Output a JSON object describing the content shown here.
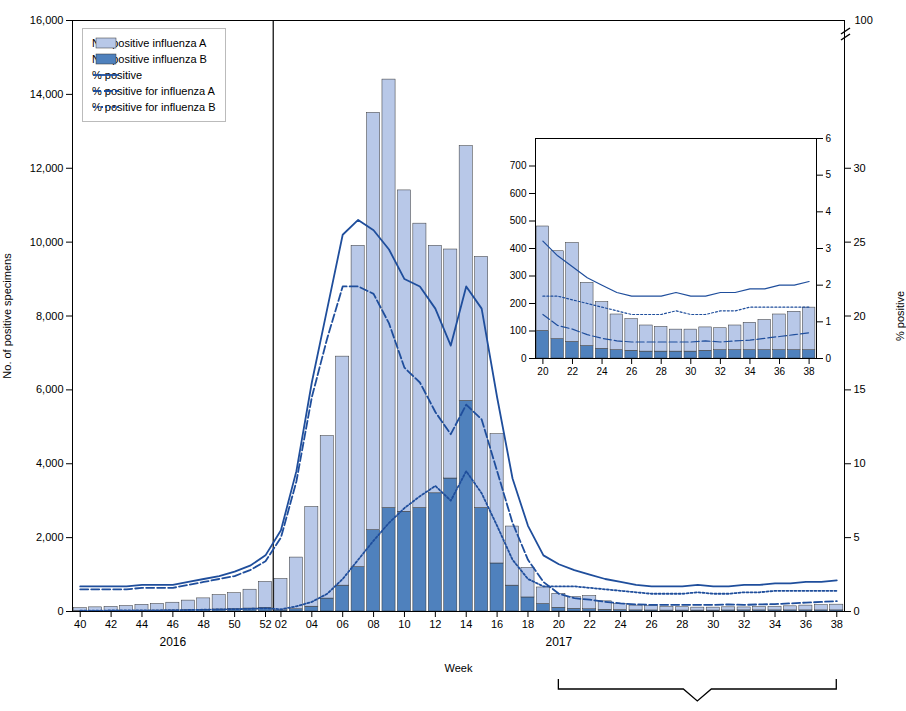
{
  "chart_data": [
    {
      "type": "bar",
      "xlabel": "Week",
      "ylabel": "No. of positive specimens",
      "y2label": "% positive",
      "categories": [
        "40",
        null,
        "42",
        null,
        "44",
        null,
        "46",
        null,
        "48",
        null,
        "50",
        null,
        "52",
        "02",
        null,
        "04",
        null,
        "06",
        null,
        "08",
        null,
        "10",
        null,
        "12",
        null,
        "14",
        null,
        "16",
        null,
        "18",
        null,
        "20",
        null,
        "22",
        null,
        "24",
        null,
        "26",
        null,
        "28",
        null,
        "30",
        null,
        "32",
        null,
        "34",
        null,
        "36",
        null,
        "38"
      ],
      "series": [
        {
          "name": "No. positive influenza A",
          "type": "bar",
          "color": "#b8c8e8",
          "values": [
            80,
            100,
            110,
            130,
            160,
            180,
            210,
            260,
            310,
            390,
            430,
            510,
            700,
            850,
            1400,
            2700,
            4400,
            6200,
            8700,
            11300,
            11600,
            8700,
            7700,
            6700,
            6200,
            6900,
            6800,
            3500,
            1600,
            800,
            450,
            380,
            320,
            360,
            230,
            170,
            130,
            115,
            95,
            90,
            80,
            80,
            85,
            80,
            90,
            100,
            110,
            130,
            140,
            155
          ]
        },
        {
          "name": "No. positive influenza B",
          "type": "bar",
          "color": "#4f81bd",
          "values": [
            10,
            12,
            15,
            18,
            22,
            25,
            28,
            35,
            45,
            55,
            65,
            80,
            100,
            30,
            60,
            130,
            350,
            700,
            1200,
            2200,
            2800,
            2700,
            2800,
            3200,
            3600,
            5700,
            2800,
            1300,
            700,
            380,
            200,
            100,
            70,
            60,
            45,
            35,
            30,
            28,
            25,
            25,
            25,
            25,
            28,
            30,
            30,
            30,
            30,
            30,
            30,
            30
          ]
        },
        {
          "name": "% positive",
          "type": "line",
          "axis": "y2",
          "color": "#1f4e9c",
          "line_style": "solid",
          "values": [
            1.7,
            1.7,
            1.7,
            1.7,
            1.8,
            1.8,
            1.8,
            2.0,
            2.2,
            2.4,
            2.7,
            3.1,
            3.8,
            5.5,
            9.5,
            15.5,
            20.5,
            25.5,
            26.5,
            25.8,
            24.5,
            22.5,
            22.0,
            20.5,
            18.0,
            22.0,
            20.5,
            14.5,
            9.0,
            5.8,
            3.8,
            3.2,
            2.8,
            2.5,
            2.2,
            2.0,
            1.8,
            1.7,
            1.7,
            1.7,
            1.8,
            1.7,
            1.7,
            1.8,
            1.8,
            1.9,
            1.9,
            2.0,
            2.0,
            2.1
          ]
        },
        {
          "name": "% positive for influenza A",
          "type": "line",
          "axis": "y2",
          "color": "#1f4e9c",
          "line_style": "dashed",
          "values": [
            1.5,
            1.5,
            1.5,
            1.5,
            1.6,
            1.6,
            1.6,
            1.8,
            2.0,
            2.2,
            2.4,
            2.8,
            3.4,
            5.0,
            8.8,
            14.5,
            18.5,
            22.0,
            22.0,
            21.5,
            19.5,
            16.5,
            15.5,
            13.5,
            12.0,
            14.0,
            13.0,
            9.5,
            6.0,
            3.5,
            2.0,
            1.2,
            0.9,
            0.8,
            0.65,
            0.55,
            0.48,
            0.45,
            0.45,
            0.45,
            0.45,
            0.45,
            0.48,
            0.45,
            0.48,
            0.5,
            0.55,
            0.6,
            0.65,
            0.7
          ]
        },
        {
          "name": "% positive for influenza B",
          "type": "line",
          "axis": "y2",
          "color": "#1f4e9c",
          "line_style": "dotted",
          "values": [
            0.05,
            0.05,
            0.07,
            0.07,
            0.08,
            0.08,
            0.09,
            0.1,
            0.12,
            0.14,
            0.16,
            0.18,
            0.22,
            0.15,
            0.35,
            0.65,
            1.2,
            2.2,
            3.5,
            4.8,
            6.0,
            7.0,
            7.8,
            8.5,
            7.5,
            9.5,
            8.0,
            5.8,
            3.5,
            2.2,
            1.7,
            1.7,
            1.7,
            1.6,
            1.5,
            1.4,
            1.3,
            1.2,
            1.2,
            1.2,
            1.3,
            1.2,
            1.2,
            1.3,
            1.3,
            1.4,
            1.4,
            1.4,
            1.4,
            1.4
          ]
        }
      ],
      "ylim": [
        0,
        16000
      ],
      "yticks": [
        0,
        {
          "value": 2000,
          "label": "2,000"
        },
        {
          "value": 4000,
          "label": "4,000"
        },
        {
          "value": 6000,
          "label": "6,000"
        },
        {
          "value": 8000,
          "label": "8,000"
        },
        {
          "value": 10000,
          "label": "10,000"
        },
        {
          "value": 12000,
          "label": "12,000"
        },
        {
          "value": 14000,
          "label": "14,000"
        },
        {
          "value": 16000,
          "label": "16,000"
        }
      ],
      "y2lim": [
        0,
        40
      ],
      "y2ticks": [
        0,
        5,
        10,
        15,
        20,
        25,
        30
      ],
      "annotations": [
        {
          "text": "2016",
          "x": "46"
        },
        {
          "text": "2017",
          "x": "20"
        },
        {
          "text": "100",
          "axis": "y2"
        }
      ],
      "stacked": true,
      "grid": false,
      "legend": "upper left"
    },
    {
      "type": "bar",
      "categories": [
        "20",
        null,
        "22",
        null,
        "24",
        null,
        "26",
        null,
        "28",
        null,
        "30",
        null,
        "32",
        null,
        "34",
        null,
        "36",
        null,
        "38"
      ],
      "series": [
        {
          "type": "bar",
          "color": "#b8c8e8",
          "values": [
            380,
            320,
            360,
            230,
            170,
            130,
            115,
            95,
            90,
            80,
            80,
            85,
            80,
            90,
            100,
            110,
            130,
            140,
            155
          ]
        },
        {
          "type": "bar",
          "color": "#4f81bd",
          "values": [
            100,
            70,
            60,
            45,
            35,
            30,
            28,
            25,
            25,
            25,
            25,
            28,
            30,
            30,
            30,
            30,
            30,
            30,
            30
          ]
        },
        {
          "type": "line",
          "axis": "y2",
          "color": "#1f4e9c",
          "line_style": "solid",
          "values": [
            3.2,
            2.8,
            2.5,
            2.2,
            2.0,
            1.8,
            1.7,
            1.7,
            1.7,
            1.8,
            1.7,
            1.7,
            1.8,
            1.8,
            1.9,
            1.9,
            2.0,
            2.0,
            2.1
          ]
        },
        {
          "type": "line",
          "axis": "y2",
          "color": "#1f4e9c",
          "line_style": "dashed",
          "values": [
            1.2,
            0.9,
            0.8,
            0.65,
            0.55,
            0.48,
            0.45,
            0.45,
            0.45,
            0.45,
            0.45,
            0.48,
            0.45,
            0.48,
            0.5,
            0.55,
            0.6,
            0.65,
            0.7
          ]
        },
        {
          "type": "line",
          "axis": "y2",
          "color": "#1f4e9c",
          "line_style": "dotted",
          "values": [
            1.7,
            1.7,
            1.6,
            1.5,
            1.4,
            1.3,
            1.2,
            1.2,
            1.2,
            1.3,
            1.2,
            1.2,
            1.3,
            1.3,
            1.4,
            1.4,
            1.4,
            1.4,
            1.4
          ]
        }
      ],
      "ylim": [
        0,
        800
      ],
      "yticks": [
        0,
        100,
        200,
        300,
        400,
        500,
        600,
        700
      ],
      "y2lim": [
        0,
        6
      ],
      "y2ticks": [
        0,
        1,
        2,
        3,
        4,
        5,
        6
      ],
      "stacked": true
    }
  ]
}
